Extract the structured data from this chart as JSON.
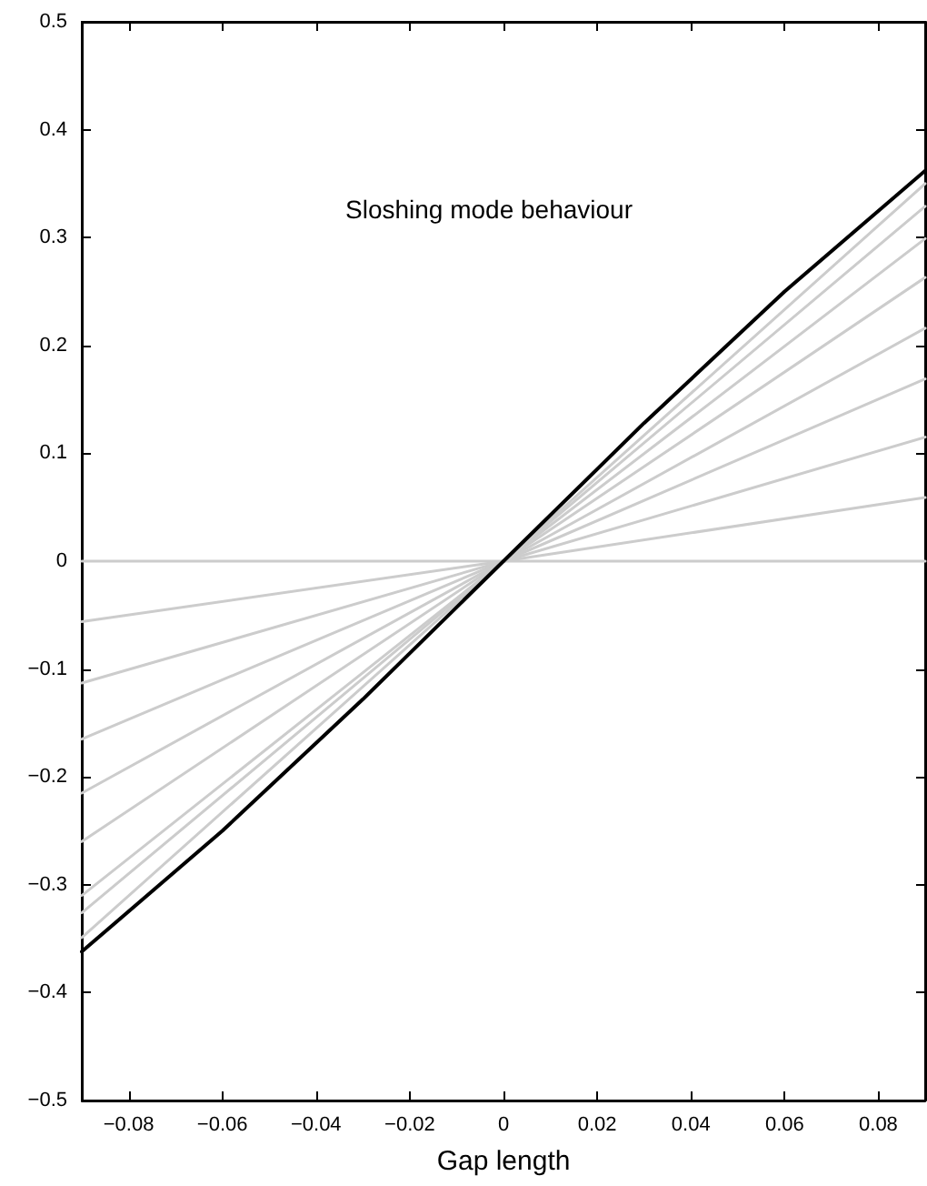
{
  "chart_data": {
    "type": "line",
    "xlabel": "Gap length",
    "annotations": [
      "Sloshing mode behaviour"
    ],
    "xlim": [
      -0.09,
      0.09
    ],
    "ylim": [
      -0.5,
      0.5
    ],
    "xticks": [
      {
        "value": -0.08,
        "label": "−0.08"
      },
      {
        "value": -0.06,
        "label": "−0.06"
      },
      {
        "value": -0.04,
        "label": "−0.04"
      },
      {
        "value": -0.02,
        "label": "−0.02"
      },
      0,
      0.02,
      0.04,
      0.06,
      0.08
    ],
    "yticks": [
      {
        "value": -0.5,
        "label": "−0.5"
      },
      {
        "value": -0.4,
        "label": "−0.4"
      },
      {
        "value": -0.3,
        "label": "−0.3"
      },
      {
        "value": -0.2,
        "label": "−0.2"
      },
      {
        "value": -0.1,
        "label": "−0.1"
      },
      0,
      0.1,
      0.2,
      0.3,
      0.4,
      0.5
    ],
    "grid": false,
    "marker": "none",
    "line_style": "solid",
    "series": [
      {
        "color": "#cccccc",
        "x": [
          -0.09,
          0,
          0.09
        ],
        "values": [
          0,
          0,
          0
        ]
      },
      {
        "color": "#cccccc",
        "x": [
          -0.09,
          0,
          0.09
        ],
        "values": [
          -0.056,
          0,
          0.059
        ]
      },
      {
        "color": "#cccccc",
        "x": [
          -0.09,
          0,
          0.09
        ],
        "values": [
          -0.113,
          0,
          0.115
        ]
      },
      {
        "color": "#cccccc",
        "x": [
          -0.09,
          0,
          0.09
        ],
        "values": [
          -0.165,
          0,
          0.169
        ]
      },
      {
        "color": "#cccccc",
        "x": [
          -0.09,
          0,
          0.09
        ],
        "values": [
          -0.215,
          0,
          0.216
        ]
      },
      {
        "color": "#cccccc",
        "x": [
          -0.09,
          0,
          0.09
        ],
        "values": [
          -0.26,
          0,
          0.263
        ]
      },
      {
        "color": "#cccccc",
        "x": [
          -0.09,
          0,
          0.09
        ],
        "values": [
          -0.31,
          0,
          0.299
        ]
      },
      {
        "color": "#cccccc",
        "x": [
          -0.09,
          0,
          0.09
        ],
        "values": [
          -0.326,
          0,
          0.329
        ]
      },
      {
        "color": "#cccccc",
        "x": [
          -0.09,
          0,
          0.09
        ],
        "values": [
          -0.349,
          0,
          0.35
        ]
      },
      {
        "color": "#000000",
        "x": [
          -0.09,
          -0.06,
          -0.03,
          0,
          0.03,
          0.06,
          0.09
        ],
        "values": [
          -0.362,
          -0.25,
          -0.128,
          0,
          0.128,
          0.25,
          0.362
        ]
      }
    ]
  }
}
